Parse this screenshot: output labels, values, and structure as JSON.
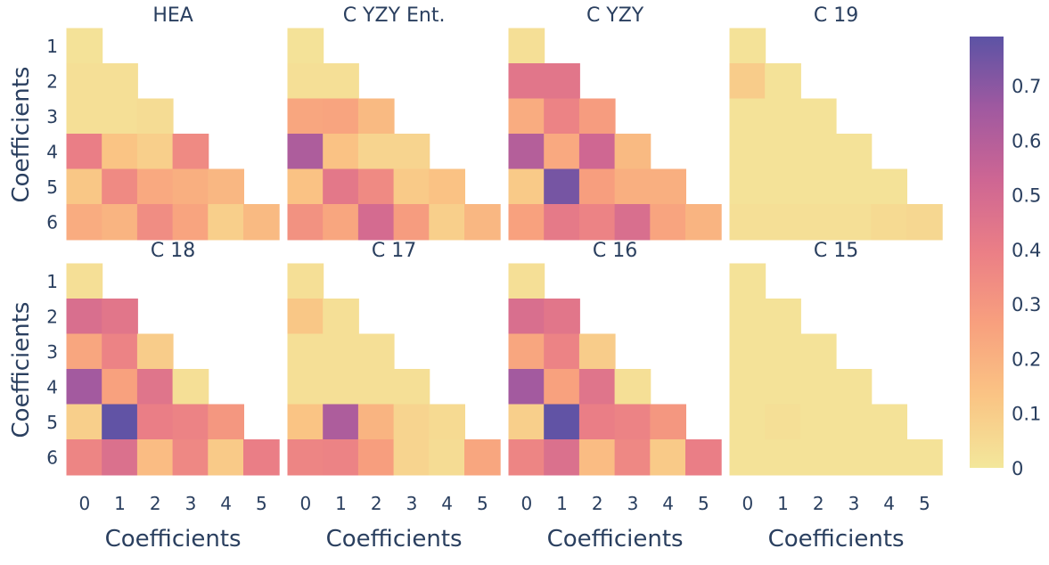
{
  "chart_data": {
    "type": "heatmap",
    "layout": "2x4 grid of lower-triangular heatmaps",
    "x_tick_labels": [
      "0",
      "1",
      "2",
      "3",
      "4",
      "5"
    ],
    "y_tick_labels": [
      "1",
      "2",
      "3",
      "4",
      "5",
      "6"
    ],
    "xlabel": "Coefficients",
    "ylabel": "Coefficients",
    "colorbar": {
      "range": [
        0,
        0.79
      ],
      "ticks": [
        "0",
        "0.1",
        "0.2",
        "0.3",
        "0.4",
        "0.5",
        "0.6",
        "0.7"
      ],
      "tick_values": [
        0,
        0.1,
        0.2,
        0.3,
        0.4,
        0.5,
        0.6,
        0.7
      ],
      "colorscale": [
        "#f3e79b",
        "#fac484",
        "#f8a07e",
        "#eb7f86",
        "#ce6693",
        "#a059a0",
        "#5c53a5"
      ]
    },
    "panels": [
      {
        "title": "HEA",
        "z": [
          [
            0.02
          ],
          [
            0.03,
            0.03
          ],
          [
            0.03,
            0.03,
            0.04
          ],
          [
            0.4,
            0.13,
            0.09,
            0.35
          ],
          [
            0.12,
            0.35,
            0.23,
            0.21,
            0.18
          ],
          [
            0.22,
            0.19,
            0.34,
            0.25,
            0.09,
            0.17
          ]
        ]
      },
      {
        "title": "C YZY Ent.",
        "z": [
          [
            0.02
          ],
          [
            0.03,
            0.03
          ],
          [
            0.24,
            0.25,
            0.17
          ],
          [
            0.62,
            0.14,
            0.07,
            0.07
          ],
          [
            0.14,
            0.43,
            0.35,
            0.11,
            0.14
          ],
          [
            0.32,
            0.24,
            0.5,
            0.28,
            0.09,
            0.18
          ]
        ]
      },
      {
        "title": "C YZY",
        "z": [
          [
            0.03
          ],
          [
            0.44,
            0.44
          ],
          [
            0.22,
            0.38,
            0.28
          ],
          [
            0.6,
            0.23,
            0.52,
            0.17
          ],
          [
            0.11,
            0.74,
            0.27,
            0.21,
            0.21
          ],
          [
            0.26,
            0.42,
            0.38,
            0.48,
            0.25,
            0.19
          ]
        ]
      },
      {
        "title": "C 19",
        "z": [
          [
            0.02
          ],
          [
            0.1,
            0.02
          ],
          [
            0.02,
            0.02,
            0.02
          ],
          [
            0.02,
            0.02,
            0.02,
            0.02
          ],
          [
            0.02,
            0.02,
            0.02,
            0.02,
            0.02
          ],
          [
            0.03,
            0.03,
            0.03,
            0.03,
            0.05,
            0.06
          ]
        ]
      },
      {
        "title": "C 18",
        "z": [
          [
            0.03
          ],
          [
            0.48,
            0.44
          ],
          [
            0.24,
            0.38,
            0.1
          ],
          [
            0.65,
            0.26,
            0.45,
            0.03
          ],
          [
            0.09,
            0.78,
            0.4,
            0.38,
            0.3
          ],
          [
            0.37,
            0.47,
            0.16,
            0.36,
            0.11,
            0.4
          ]
        ]
      },
      {
        "title": "C 17",
        "z": [
          [
            0.03
          ],
          [
            0.12,
            0.03
          ],
          [
            0.03,
            0.03,
            0.03
          ],
          [
            0.03,
            0.03,
            0.03,
            0.03
          ],
          [
            0.13,
            0.62,
            0.19,
            0.07,
            0.05
          ],
          [
            0.37,
            0.38,
            0.27,
            0.07,
            0.04,
            0.24
          ]
        ]
      },
      {
        "title": "C 16",
        "z": [
          [
            0.03
          ],
          [
            0.48,
            0.44
          ],
          [
            0.24,
            0.38,
            0.1
          ],
          [
            0.65,
            0.26,
            0.45,
            0.03
          ],
          [
            0.09,
            0.78,
            0.4,
            0.38,
            0.3
          ],
          [
            0.37,
            0.47,
            0.16,
            0.36,
            0.11,
            0.4
          ]
        ]
      },
      {
        "title": "C 15",
        "z": [
          [
            0.02
          ],
          [
            0.02,
            0.02
          ],
          [
            0.02,
            0.02,
            0.02
          ],
          [
            0.02,
            0.02,
            0.02,
            0.02
          ],
          [
            0.02,
            0.03,
            0.02,
            0.02,
            0.02
          ],
          [
            0.02,
            0.02,
            0.02,
            0.02,
            0.02,
            0.02
          ]
        ]
      }
    ]
  }
}
